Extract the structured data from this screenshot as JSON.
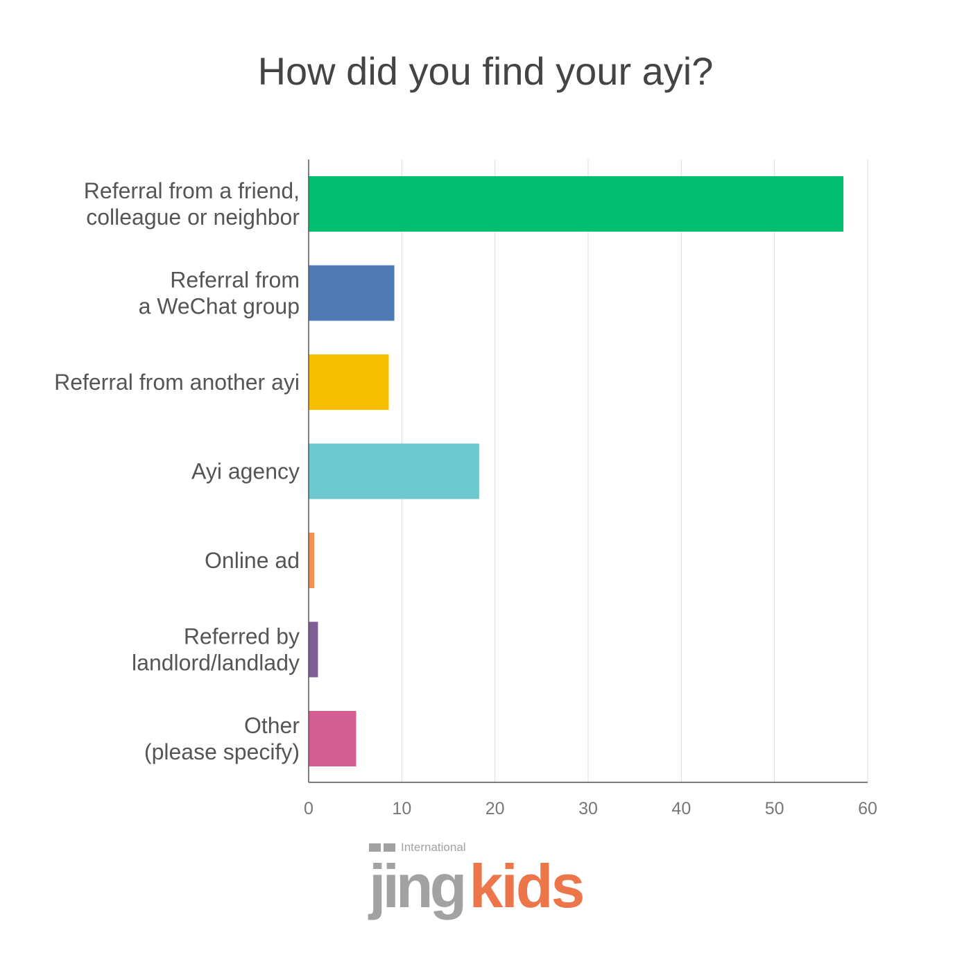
{
  "chart_data": {
    "type": "bar",
    "orientation": "horizontal",
    "title": "How did you find your ayi?",
    "categories": [
      [
        "Referral from a friend,",
        "colleague or neighbor"
      ],
      [
        "Referral from",
        "a WeChat group"
      ],
      [
        "Referral from another ayi"
      ],
      [
        "Ayi agency"
      ],
      [
        "Online ad"
      ],
      [
        "Referred by",
        "landlord/landlady"
      ],
      [
        "Other",
        "(please specify)"
      ]
    ],
    "values": [
      57.4,
      9.2,
      8.6,
      18.3,
      0.6,
      1.0,
      5.1
    ],
    "colors": [
      "#02bf6f",
      "#4f7bb5",
      "#f8bf00",
      "#6cc8cc",
      "#f79051",
      "#7d5e96",
      "#d45d91"
    ],
    "xlim": [
      0,
      60
    ],
    "xticks": [
      "0",
      "10",
      "20",
      "30",
      "40",
      "50",
      "60"
    ],
    "grid": true,
    "xlabel": "",
    "ylabel": ""
  },
  "logo": {
    "text": "International jingkids"
  }
}
